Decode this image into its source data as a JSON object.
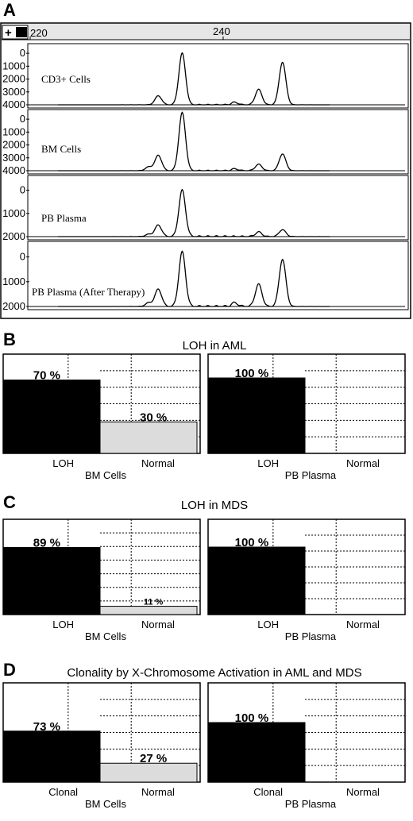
{
  "panel_a": {
    "letter": "A",
    "ruler_ticks": [
      "220",
      "240"
    ],
    "traces": [
      {
        "label": "CD3+ Cells",
        "yticks": [
          "4000",
          "3000",
          "2000",
          "1000",
          "0"
        ]
      },
      {
        "label": "BM Cells",
        "yticks": [
          "4000",
          "3000",
          "2000",
          "1000",
          "0"
        ]
      },
      {
        "label": "PB Plasma",
        "yticks": [
          "2000",
          "1000",
          "0"
        ]
      },
      {
        "label": "PB Plasma (After Therapy)",
        "yticks": [
          "2000",
          "1000",
          "0"
        ]
      }
    ]
  },
  "panel_b": {
    "letter": "B",
    "title": "LOH in AML"
  },
  "panel_c": {
    "letter": "C",
    "title": "LOH in MDS"
  },
  "panel_d": {
    "letter": "D",
    "title": "Clonality by X-Chromosome Activation in AML and MDS"
  },
  "colors": {
    "bar_primary": "#000000",
    "bar_secondary": "#dcdcdc",
    "trace": "#000000"
  },
  "chart_data": [
    {
      "type": "line",
      "title": "CD3+ Cells",
      "x_ticks": [
        220,
        240
      ],
      "ylim": [
        0,
        4500
      ],
      "yticks": [
        0,
        1000,
        2000,
        3000,
        4000
      ],
      "peaks": [
        {
          "x": 232.0,
          "y": 700
        },
        {
          "x": 234.5,
          "y": 4000
        },
        {
          "x": 240.0,
          "y": 200
        },
        {
          "x": 242.5,
          "y": 1200
        },
        {
          "x": 245.0,
          "y": 3300
        }
      ]
    },
    {
      "type": "line",
      "title": "BM Cells",
      "x_ticks": [
        220,
        240
      ],
      "ylim": [
        0,
        4500
      ],
      "yticks": [
        0,
        1000,
        2000,
        3000,
        4000
      ],
      "peaks": [
        {
          "x": 231.0,
          "y": 300
        },
        {
          "x": 232.0,
          "y": 1200
        },
        {
          "x": 234.5,
          "y": 4500
        },
        {
          "x": 240.0,
          "y": 150
        },
        {
          "x": 242.5,
          "y": 500
        },
        {
          "x": 245.0,
          "y": 1300
        }
      ]
    },
    {
      "type": "line",
      "title": "PB Plasma",
      "x_ticks": [
        220,
        240
      ],
      "ylim": [
        0,
        2500
      ],
      "yticks": [
        0,
        1000,
        2000
      ],
      "peaks": [
        {
          "x": 231.0,
          "y": 100
        },
        {
          "x": 232.0,
          "y": 500
        },
        {
          "x": 234.5,
          "y": 2000
        },
        {
          "x": 242.5,
          "y": 200
        },
        {
          "x": 245.0,
          "y": 300
        }
      ]
    },
    {
      "type": "line",
      "title": "PB Plasma (After Therapy)",
      "x_ticks": [
        220,
        240
      ],
      "ylim": [
        0,
        2500
      ],
      "yticks": [
        0,
        1000,
        2000
      ],
      "peaks": [
        {
          "x": 231.0,
          "y": 150
        },
        {
          "x": 232.0,
          "y": 700
        },
        {
          "x": 234.5,
          "y": 2200
        },
        {
          "x": 240.0,
          "y": 150
        },
        {
          "x": 242.5,
          "y": 900
        },
        {
          "x": 245.0,
          "y": 1900
        }
      ]
    },
    {
      "type": "bar",
      "title": "LOH in AML",
      "xlabel": "BM Cells",
      "categories": [
        "LOH",
        "Normal"
      ],
      "values": [
        70,
        30
      ],
      "labels": [
        "70 %",
        "30 %"
      ],
      "ylim": [
        0,
        100
      ]
    },
    {
      "type": "bar",
      "title": "LOH in AML",
      "xlabel": "PB Plasma",
      "categories": [
        "LOH",
        "Normal"
      ],
      "values": [
        100,
        0
      ],
      "labels": [
        "100 %",
        ""
      ],
      "ylim": [
        0,
        100
      ]
    },
    {
      "type": "bar",
      "title": "LOH in MDS",
      "xlabel": "BM Cells",
      "categories": [
        "LOH",
        "Normal"
      ],
      "values": [
        89,
        11
      ],
      "labels": [
        "89 %",
        "11 %"
      ],
      "ylim": [
        0,
        100
      ]
    },
    {
      "type": "bar",
      "title": "LOH in MDS",
      "xlabel": "PB Plasma",
      "categories": [
        "LOH",
        "Normal"
      ],
      "values": [
        100,
        0
      ],
      "labels": [
        "100 %",
        ""
      ],
      "ylim": [
        0,
        100
      ]
    },
    {
      "type": "bar",
      "title": "Clonality by X-Chromosome Activation in AML and MDS",
      "xlabel": "BM Cells",
      "categories": [
        "Clonal",
        "Normal"
      ],
      "values": [
        73,
        27
      ],
      "labels": [
        "73 %",
        "27 %"
      ],
      "ylim": [
        0,
        100
      ]
    },
    {
      "type": "bar",
      "title": "Clonality by X-Chromosome Activation in AML and MDS",
      "xlabel": "PB Plasma",
      "categories": [
        "Clonal",
        "Normal"
      ],
      "values": [
        100,
        0
      ],
      "labels": [
        "100 %",
        ""
      ],
      "ylim": [
        0,
        100
      ]
    }
  ]
}
